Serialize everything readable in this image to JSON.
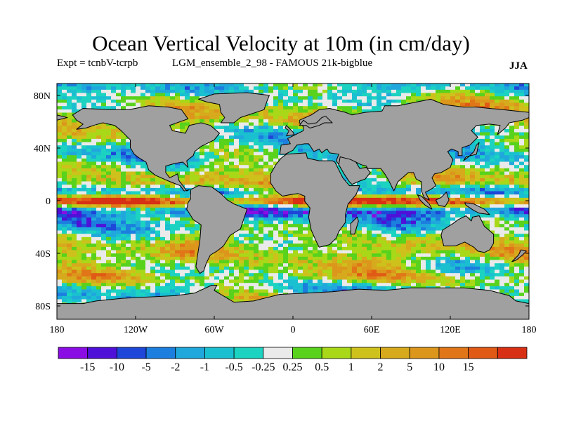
{
  "title": "Ocean Vertical Velocity at 10m (in cm/day)",
  "experiment_label": "Expt = tcnbV-tcrpb",
  "run_label": "LGM_ensemble_2_98 - FAMOUS 21k-bigblue",
  "season": "JJA",
  "lat_ticks": [
    "80N",
    "40N",
    "0",
    "40S",
    "80S"
  ],
  "lon_ticks": [
    "180",
    "120W",
    "60W",
    "0",
    "60E",
    "120E",
    "180"
  ],
  "colorbar": {
    "colors": [
      "#8a0ee4",
      "#4f10d8",
      "#1e46d8",
      "#1c7ede",
      "#20a8dc",
      "#1ac0d0",
      "#1cd2c0",
      "#eaeaea",
      "#58d21c",
      "#a8d818",
      "#cec11c",
      "#d6aa1c",
      "#dc961c",
      "#e07618",
      "#e05a16",
      "#d83014"
    ],
    "labels": [
      "-15",
      "-10",
      "-5",
      "-2",
      "-1",
      "-0.5",
      "-0.25",
      "0.25",
      "0.5",
      "1",
      "2",
      "5",
      "10",
      "15"
    ]
  },
  "map_colors": {
    "land": "#a0a0a0",
    "coast": "#000000"
  }
}
